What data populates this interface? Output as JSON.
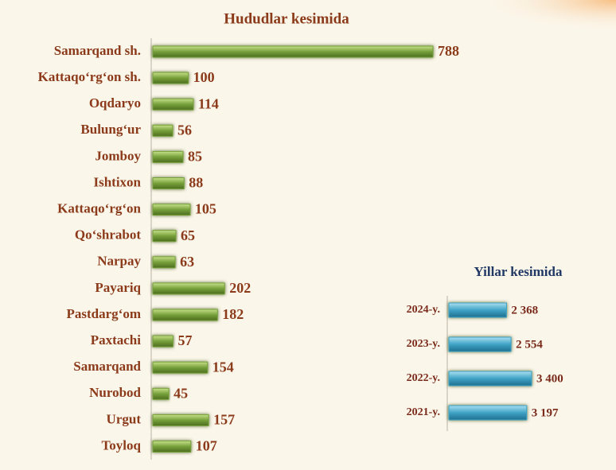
{
  "chart_data": [
    {
      "type": "barh",
      "title": "Hududlar kesimida",
      "categories": [
        "Samarqand sh.",
        "Kattaqo‘rg‘on sh.",
        "Oqdaryo",
        "Bulung‘ur",
        "Jomboy",
        "Ishtixon",
        "Kattaqo‘rg‘on",
        "Qo‘shrabot",
        "Narpay",
        "Payariq",
        "Pastdarg‘om",
        "Paxtachi",
        "Samarqand",
        "Nurobod",
        "Urgut",
        "Toyloq"
      ],
      "values": [
        788,
        100,
        114,
        56,
        85,
        88,
        105,
        65,
        63,
        202,
        182,
        57,
        154,
        45,
        157,
        107
      ],
      "color": "#76a03a"
    },
    {
      "type": "barh",
      "title": "Yillar kesimida",
      "categories": [
        "2024-y.",
        "2023-y.",
        "2022-y.",
        "2021-y."
      ],
      "values": [
        2368,
        2554,
        3400,
        3197
      ],
      "value_labels": [
        "2 368",
        "2 554",
        "3 400",
        "3 197"
      ],
      "color": "#3fa3c6"
    }
  ]
}
